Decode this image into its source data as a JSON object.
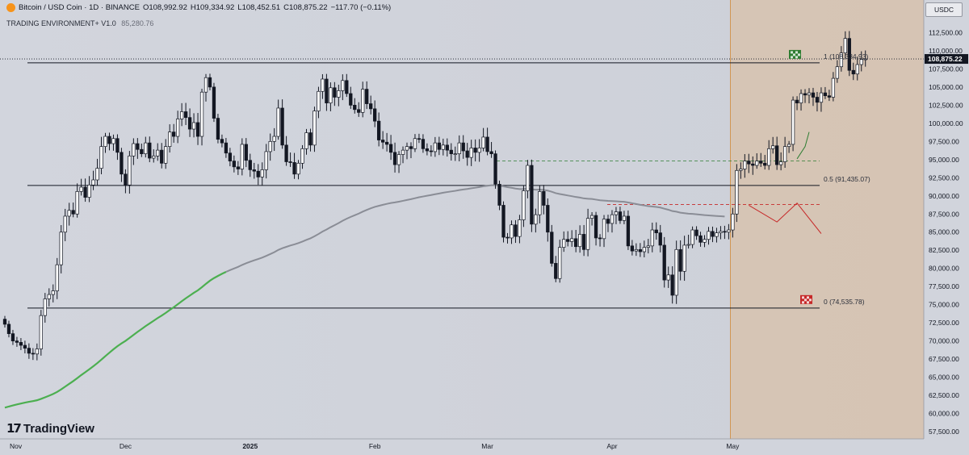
{
  "legend": {
    "symbol": "Bitcoin / USD Coin · 1D · BINANCE",
    "open": "O108,992.92",
    "high": "H109,334.92",
    "low": "L108,452.51",
    "close": "C108,875.22",
    "change": "−117.70 (−0.11%)"
  },
  "indicator": {
    "name": "TRADING ENVIRONMENT+ V1.0",
    "value": "85,280.76"
  },
  "currency_button": "USDC",
  "brand": "TradingView",
  "current_price_label": "108,875.22",
  "fib_labels": {
    "one": "1 (108,334.93)",
    "half": "0.5 (91,435.07)",
    "zero": "0 (74,535.78)"
  },
  "colors": {
    "up": "#ffffff",
    "down": "#131722",
    "ema_green": "#4caf50",
    "ema_gray": "#8a8d96",
    "projection_zone": "#d8c0a8",
    "target_green": "#2e7d32",
    "target_red": "#c62828"
  },
  "chart_data": {
    "type": "candlestick",
    "title": "Bitcoin / USD Coin · 1D · BINANCE",
    "ylim": [
      56500,
      117000
    ],
    "price_ticks": [
      57500,
      60000,
      62500,
      65000,
      67500,
      70000,
      72500,
      75000,
      77500,
      80000,
      82500,
      85000,
      87500,
      90000,
      92500,
      95000,
      97500,
      100000,
      102500,
      105000,
      107500,
      110000,
      112500
    ],
    "price_tick_labels": [
      "57,500.00",
      "60,000.00",
      "62,500.00",
      "65,000.00",
      "67,500.00",
      "70,000.00",
      "72,500.00",
      "75,000.00",
      "77,500.00",
      "80,000.00",
      "82,500.00",
      "85,000.00",
      "87,500.00",
      "90,000.00",
      "92,500.00",
      "95,000.00",
      "97,500.00",
      "100,000.00",
      "102,500.00",
      "105,000.00",
      "107,500.00",
      "110,000.00",
      "112,500.00"
    ],
    "time_labels": [
      "Nov",
      "Dec",
      "2025",
      "Feb",
      "Mar",
      "Apr",
      "May"
    ],
    "bar_index_of_time_labels": [
      0,
      30,
      61,
      92,
      120,
      151,
      181
    ],
    "closes": [
      72300,
      71000,
      70000,
      69800,
      69400,
      69000,
      68300,
      68200,
      68900,
      73500,
      75800,
      76400,
      76900,
      80500,
      85000,
      87200,
      88000,
      87500,
      90600,
      91200,
      89800,
      91500,
      92200,
      93800,
      96800,
      98200,
      97200,
      97900,
      96000,
      93000,
      91500,
      95500,
      97200,
      96400,
      95800,
      97300,
      95200,
      95500,
      96300,
      94500,
      96800,
      98800,
      98200,
      100600,
      101600,
      100800,
      99200,
      100100,
      98200,
      104300,
      106300,
      105000,
      100700,
      97800,
      97300,
      95900,
      94800,
      94000,
      93700,
      97100,
      94900,
      93600,
      93400,
      92600,
      93600,
      96100,
      97500,
      98200,
      102100,
      97000,
      94700,
      94600,
      93000,
      94500,
      96500,
      98700,
      97000,
      101700,
      104400,
      106100,
      102800,
      104900,
      103600,
      104500,
      105900,
      104100,
      102500,
      101900,
      101500,
      104700,
      102700,
      102000,
      100300,
      97700,
      97400,
      97100,
      96000,
      94300,
      95700,
      96300,
      96800,
      96500,
      97900,
      97800,
      96500,
      96200,
      96100,
      97300,
      96400,
      97000,
      96300,
      95800,
      95800,
      97300,
      96200,
      95300,
      96600,
      96000,
      96600,
      98100,
      96100,
      95800,
      91600,
      88700,
      84300,
      84200,
      86000,
      84400,
      86700,
      90700,
      94200,
      86100,
      87400,
      90600,
      88700,
      85000,
      80700,
      78600,
      82900,
      84000,
      83700,
      84100,
      83000,
      84700,
      82600,
      86900,
      87300,
      84200,
      84100,
      86800,
      86200,
      87400,
      87800,
      86600,
      87200,
      83100,
      82400,
      82600,
      82300,
      82900,
      83100,
      85300,
      84900,
      83200,
      78400,
      79100,
      76300,
      82600,
      79600,
      83200,
      83300,
      85300,
      84500,
      83600,
      84000,
      85100,
      84400,
      84900,
      85100,
      85000,
      85300,
      87500,
      93500,
      93700,
      94800,
      94400,
      94200,
      94800,
      94500,
      94200,
      96500,
      96900,
      94300,
      94700,
      96800,
      97100,
      103200,
      102800,
      104100,
      103900,
      104200,
      103600,
      102900,
      104200,
      103800,
      103600,
      106200,
      107800,
      109700,
      111700,
      107300,
      106800,
      108100,
      108800,
      108875
    ],
    "lines": {
      "fib_1": 108334.93,
      "fib_0_5": 91435.07,
      "fib_0": 74535.78,
      "green_dashed": 94800,
      "red_dashed": 88800,
      "current_price": 108875.22
    }
  }
}
